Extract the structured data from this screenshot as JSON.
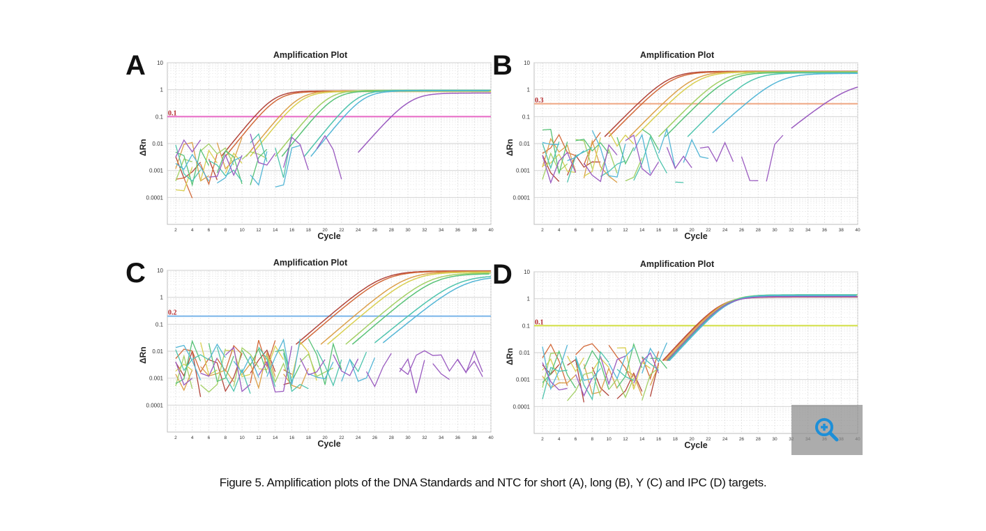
{
  "caption": "Figure 5. Amplification plots of the DNA Standards and NTC for short (A), long (B), Y (C) and IPC (D) targets.",
  "zoom_button": {
    "icon": "zoom-in-icon",
    "color": "#1d8fd8"
  },
  "series_colors": [
    "#b2453b",
    "#d36a3a",
    "#dca04a",
    "#d9cf50",
    "#a3d065",
    "#58c277",
    "#4ec4ad",
    "#53b6d6",
    "#9a5bc0"
  ],
  "chart_data": [
    {
      "panel": "A",
      "type": "line",
      "title": "Amplification Plot",
      "xlabel": "Cycle",
      "ylabel": "ΔRn",
      "y_scale": "log",
      "ylim": [
        1e-05,
        10
      ],
      "xlim": [
        1,
        40
      ],
      "y_ticks": [
        "10",
        "1",
        "0.1",
        "0.01",
        "0.001",
        "0.0001"
      ],
      "x_ticks": [
        "2",
        "4",
        "6",
        "8",
        "10",
        "12",
        "14",
        "16",
        "18",
        "20",
        "22",
        "24",
        "26",
        "28",
        "30",
        "32",
        "34",
        "36",
        "38",
        "40"
      ],
      "grid": true,
      "threshold": {
        "value": 0.1,
        "label": "0.1",
        "color": "#e870c8"
      },
      "series": [
        {
          "color": "#b2453b",
          "ct": 11.5,
          "plateau": 0.9,
          "slope": 0.55
        },
        {
          "color": "#d36a3a",
          "ct": 12.0,
          "plateau": 0.85,
          "slope": 0.55
        },
        {
          "color": "#dca04a",
          "ct": 14.5,
          "plateau": 0.9,
          "slope": 0.55
        },
        {
          "color": "#d9cf50",
          "ct": 15.0,
          "plateau": 0.85,
          "slope": 0.55
        },
        {
          "color": "#a3d065",
          "ct": 18.0,
          "plateau": 0.95,
          "slope": 0.55
        },
        {
          "color": "#58c277",
          "ct": 18.8,
          "plateau": 0.9,
          "slope": 0.55
        },
        {
          "color": "#4ec4ad",
          "ct": 21.5,
          "plateau": 0.95,
          "slope": 0.55
        },
        {
          "color": "#53b6d6",
          "ct": 22.3,
          "plateau": 0.9,
          "slope": 0.55
        },
        {
          "color": "#9a5bc0",
          "ct": 28.0,
          "plateau": 0.75,
          "slope": 0.5
        }
      ]
    },
    {
      "panel": "B",
      "type": "line",
      "title": "Amplification Plot",
      "xlabel": "Cycle",
      "ylabel": "ΔRn",
      "y_scale": "log",
      "ylim": [
        1e-05,
        10
      ],
      "xlim": [
        1,
        40
      ],
      "y_ticks": [
        "10",
        "1",
        "0.1",
        "0.01",
        "0.001",
        "0.0001"
      ],
      "x_ticks": [
        "2",
        "4",
        "6",
        "8",
        "10",
        "12",
        "14",
        "16",
        "18",
        "20",
        "22",
        "24",
        "26",
        "28",
        "30",
        "32",
        "34",
        "36",
        "38",
        "40"
      ],
      "grid": true,
      "threshold": {
        "value": 0.3,
        "label": "0.3",
        "color": "#f0b090"
      },
      "series": [
        {
          "color": "#b2453b",
          "ct": 13.5,
          "plateau": 4.8,
          "slope": 0.45
        },
        {
          "color": "#d36a3a",
          "ct": 14.0,
          "plateau": 4.6,
          "slope": 0.45
        },
        {
          "color": "#dca04a",
          "ct": 16.5,
          "plateau": 4.7,
          "slope": 0.45
        },
        {
          "color": "#d9cf50",
          "ct": 17.2,
          "plateau": 4.5,
          "slope": 0.45
        },
        {
          "color": "#a3d065",
          "ct": 20.0,
          "plateau": 4.6,
          "slope": 0.45
        },
        {
          "color": "#58c277",
          "ct": 20.8,
          "plateau": 4.3,
          "slope": 0.45
        },
        {
          "color": "#4ec4ad",
          "ct": 23.5,
          "plateau": 4.2,
          "slope": 0.45
        },
        {
          "color": "#53b6d6",
          "ct": 26.5,
          "plateau": 4.0,
          "slope": 0.4
        },
        {
          "color": "#9a5bc0",
          "ct": 36.0,
          "plateau": 2.0,
          "slope": 0.35
        }
      ]
    },
    {
      "panel": "C",
      "type": "line",
      "title": "Amplification Plot",
      "xlabel": "Cycle",
      "ylabel": "ΔRn",
      "y_scale": "log",
      "ylim": [
        1e-05,
        10
      ],
      "xlim": [
        1,
        40
      ],
      "y_ticks": [
        "10",
        "1",
        "0.1",
        "0.01",
        "0.001",
        "0.0001"
      ],
      "x_ticks": [
        "2",
        "4",
        "6",
        "8",
        "10",
        "12",
        "14",
        "16",
        "18",
        "20",
        "22",
        "24",
        "26",
        "28",
        "30",
        "32",
        "34",
        "36",
        "38",
        "40"
      ],
      "grid": true,
      "threshold": {
        "value": 0.2,
        "label": "0.2",
        "color": "#80b8ea"
      },
      "series": [
        {
          "color": "#b2453b",
          "ct": 20.5,
          "plateau": 9.5,
          "slope": 0.38
        },
        {
          "color": "#d36a3a",
          "ct": 21.0,
          "plateau": 9.2,
          "slope": 0.38
        },
        {
          "color": "#dca04a",
          "ct": 23.5,
          "plateau": 9.0,
          "slope": 0.38
        },
        {
          "color": "#d9cf50",
          "ct": 24.3,
          "plateau": 8.6,
          "slope": 0.38
        },
        {
          "color": "#a3d065",
          "ct": 26.5,
          "plateau": 8.0,
          "slope": 0.38
        },
        {
          "color": "#58c277",
          "ct": 27.3,
          "plateau": 7.5,
          "slope": 0.38
        },
        {
          "color": "#4ec4ad",
          "ct": 30.0,
          "plateau": 6.5,
          "slope": 0.36
        },
        {
          "color": "#53b6d6",
          "ct": 31.0,
          "plateau": 6.0,
          "slope": 0.36
        },
        {
          "color": "#9a5bc0",
          "ct": 99,
          "plateau": 0.005,
          "slope": 0.3
        }
      ]
    },
    {
      "panel": "D",
      "type": "line",
      "title": "Amplification Plot",
      "xlabel": "Cycle",
      "ylabel": "ΔRn",
      "y_scale": "log",
      "ylim": [
        1e-05,
        10
      ],
      "xlim": [
        1,
        40
      ],
      "y_ticks": [
        "10",
        "1",
        "0.1",
        "0.01",
        "0.001",
        "0.0001"
      ],
      "x_ticks": [
        "2",
        "4",
        "6",
        "8",
        "10",
        "12",
        "14",
        "16",
        "18",
        "20",
        "22",
        "24",
        "26",
        "28",
        "30",
        "32",
        "34",
        "36",
        "38",
        "40"
      ],
      "grid": true,
      "threshold": {
        "value": 0.1,
        "label": "0.1",
        "color": "#d4e04c"
      },
      "series": [
        {
          "color": "#b2453b",
          "ct": 20.5,
          "plateau": 1.15,
          "slope": 0.48
        },
        {
          "color": "#d36a3a",
          "ct": 20.6,
          "plateau": 1.2,
          "slope": 0.48
        },
        {
          "color": "#dca04a",
          "ct": 20.8,
          "plateau": 1.3,
          "slope": 0.48
        },
        {
          "color": "#d9cf50",
          "ct": 20.9,
          "plateau": 1.3,
          "slope": 0.48
        },
        {
          "color": "#a3d065",
          "ct": 21.0,
          "plateau": 1.4,
          "slope": 0.48
        },
        {
          "color": "#58c277",
          "ct": 21.1,
          "plateau": 1.35,
          "slope": 0.48
        },
        {
          "color": "#4ec4ad",
          "ct": 21.2,
          "plateau": 1.4,
          "slope": 0.48
        },
        {
          "color": "#53b6d6",
          "ct": 21.3,
          "plateau": 1.3,
          "slope": 0.48
        },
        {
          "color": "#9a5bc0",
          "ct": 21.0,
          "plateau": 1.2,
          "slope": 0.48
        }
      ]
    }
  ]
}
